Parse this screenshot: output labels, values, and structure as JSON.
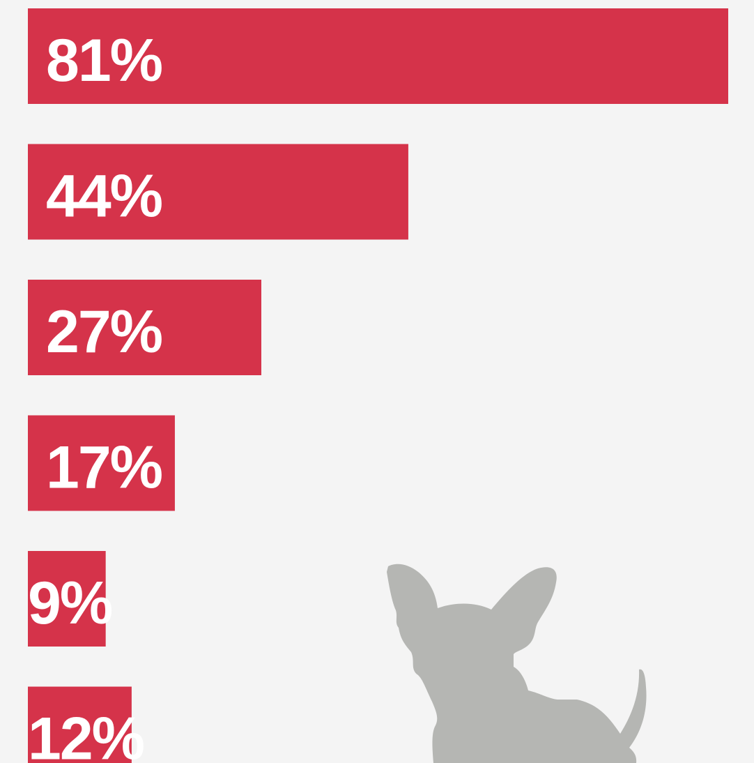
{
  "chart_data": {
    "type": "bar",
    "orientation": "horizontal",
    "categories": [
      "",
      "",
      "",
      "",
      "",
      ""
    ],
    "values": [
      81,
      44,
      27,
      17,
      9,
      12
    ],
    "labels": [
      "81%",
      "44%",
      "27%",
      "17%",
      "9%",
      "12%"
    ],
    "title": "",
    "xlabel": "",
    "ylabel": "",
    "xlim": [
      0,
      81
    ],
    "grid": false,
    "legend": "none",
    "bar_color": "#d5334a",
    "label_color": "#ffffff"
  },
  "illustration": {
    "icon": "chihuahua-silhouette-icon",
    "color": "#b5b6b3"
  }
}
